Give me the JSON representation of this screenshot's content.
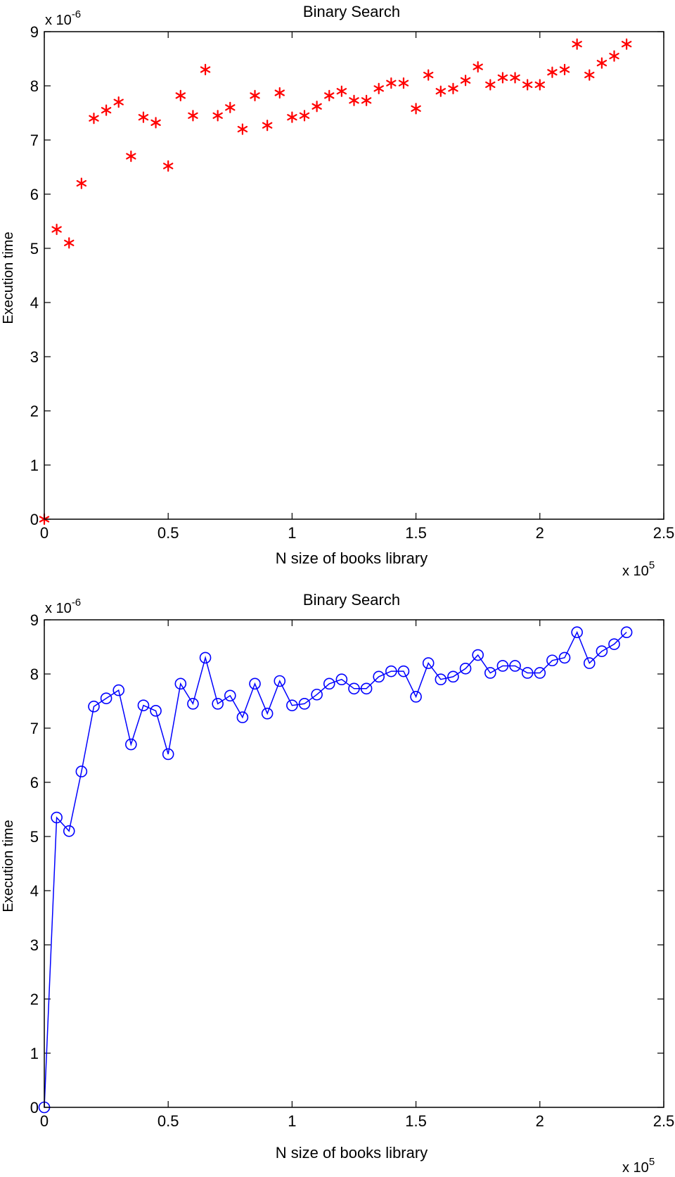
{
  "chart_data": [
    {
      "type": "scatter",
      "title": "Binary Search",
      "xlabel": "N size of books library",
      "ylabel": "Execution time",
      "x_exponent_label": "x 10",
      "x_exponent": "5",
      "y_exponent_label": "x 10",
      "y_exponent": "-6",
      "xlim": [
        0,
        2.5
      ],
      "ylim": [
        0,
        9
      ],
      "xticks": [
        "0",
        "0.5",
        "1",
        "1.5",
        "2",
        "2.5"
      ],
      "yticks": [
        "0",
        "1",
        "2",
        "3",
        "4",
        "5",
        "6",
        "7",
        "8",
        "9"
      ],
      "marker": "asterisk",
      "color": "#ff0000",
      "grid": false,
      "series": [
        {
          "x": [
            0,
            0.05,
            0.1,
            0.15,
            0.2,
            0.25,
            0.3,
            0.35,
            0.4,
            0.45,
            0.5,
            0.55,
            0.6,
            0.65,
            0.7,
            0.75,
            0.8,
            0.85,
            0.9,
            0.95,
            1.0,
            1.05,
            1.1,
            1.15,
            1.2,
            1.25,
            1.3,
            1.35,
            1.4,
            1.45,
            1.5,
            1.55,
            1.6,
            1.65,
            1.7,
            1.75,
            1.8,
            1.85,
            1.9,
            1.95,
            2.0,
            2.05,
            2.1,
            2.15,
            2.2,
            2.25,
            2.3,
            2.35
          ],
          "y": [
            0,
            5.35,
            5.1,
            6.2,
            7.4,
            7.55,
            7.7,
            6.7,
            7.42,
            7.32,
            6.52,
            7.82,
            7.45,
            8.3,
            7.45,
            7.6,
            7.2,
            7.82,
            7.27,
            7.87,
            7.42,
            7.45,
            7.62,
            7.82,
            7.9,
            7.73,
            7.73,
            7.95,
            8.05,
            8.05,
            7.58,
            8.2,
            7.9,
            7.95,
            8.1,
            8.35,
            8.02,
            8.15,
            8.15,
            8.02,
            8.02,
            8.25,
            8.3,
            8.77,
            8.2,
            8.42,
            8.55,
            8.77
          ]
        }
      ]
    },
    {
      "type": "line",
      "title": "Binary Search",
      "xlabel": "N size of books library",
      "ylabel": "Execution time",
      "x_exponent_label": "x 10",
      "x_exponent": "5",
      "y_exponent_label": "x 10",
      "y_exponent": "-6",
      "xlim": [
        0,
        2.5
      ],
      "ylim": [
        0,
        9
      ],
      "xticks": [
        "0",
        "0.5",
        "1",
        "1.5",
        "2",
        "2.5"
      ],
      "yticks": [
        "0",
        "1",
        "2",
        "3",
        "4",
        "5",
        "6",
        "7",
        "8",
        "9"
      ],
      "marker": "circle",
      "color": "#0000ff",
      "grid": false,
      "series": [
        {
          "x": [
            0,
            0.05,
            0.1,
            0.15,
            0.2,
            0.25,
            0.3,
            0.35,
            0.4,
            0.45,
            0.5,
            0.55,
            0.6,
            0.65,
            0.7,
            0.75,
            0.8,
            0.85,
            0.9,
            0.95,
            1.0,
            1.05,
            1.1,
            1.15,
            1.2,
            1.25,
            1.3,
            1.35,
            1.4,
            1.45,
            1.5,
            1.55,
            1.6,
            1.65,
            1.7,
            1.75,
            1.8,
            1.85,
            1.9,
            1.95,
            2.0,
            2.05,
            2.1,
            2.15,
            2.2,
            2.25,
            2.3,
            2.35
          ],
          "y": [
            0,
            5.35,
            5.1,
            6.2,
            7.4,
            7.55,
            7.7,
            6.7,
            7.42,
            7.32,
            6.52,
            7.82,
            7.45,
            8.3,
            7.45,
            7.6,
            7.2,
            7.82,
            7.27,
            7.87,
            7.42,
            7.45,
            7.62,
            7.82,
            7.9,
            7.73,
            7.73,
            7.95,
            8.05,
            8.05,
            7.58,
            8.2,
            7.9,
            7.95,
            8.1,
            8.35,
            8.02,
            8.15,
            8.15,
            8.02,
            8.02,
            8.25,
            8.3,
            8.77,
            8.2,
            8.42,
            8.55,
            8.77
          ]
        }
      ]
    }
  ]
}
